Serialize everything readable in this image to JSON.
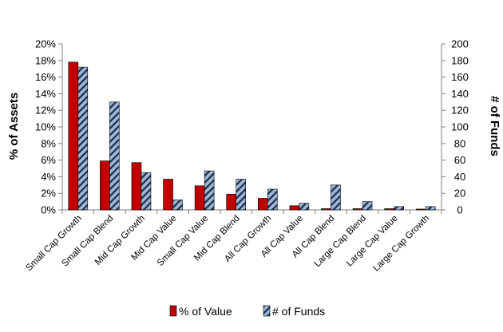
{
  "chart_data": {
    "type": "bar",
    "categories": [
      "Small Cap Growth",
      "Small Cap Blend",
      "Mid Cap Growth",
      "Mid Cap Value",
      "Small Cap Value",
      "Mid Cap Blend",
      "All Cap Growth",
      "All Cap Value",
      "All Cap Blend",
      "Large Cap Blend",
      "Large Cap Value",
      "Large Cap Growth"
    ],
    "series": [
      {
        "name": "% of Value",
        "axis": "left",
        "color": "#c00000",
        "values": [
          17.8,
          5.9,
          5.7,
          3.7,
          2.9,
          1.9,
          1.4,
          0.5,
          0.15,
          0.15,
          0.15,
          0.1
        ]
      },
      {
        "name": "# of Funds",
        "axis": "right",
        "color": "#9bb7d9",
        "pattern": "diagonal-stripes",
        "values": [
          172,
          130,
          45,
          12,
          47,
          37,
          25,
          8,
          30,
          10,
          4,
          4
        ]
      }
    ],
    "ylabel": "% of Assets",
    "ylabel_right": "# of Funds",
    "ylim": [
      0,
      20
    ],
    "ylim_right": [
      0,
      200
    ],
    "yticks": [
      "0%",
      "2%",
      "4%",
      "6%",
      "8%",
      "10%",
      "12%",
      "14%",
      "16%",
      "18%",
      "20%"
    ],
    "yticks_right": [
      "0",
      "20",
      "40",
      "60",
      "80",
      "100",
      "120",
      "140",
      "160",
      "180",
      "200"
    ],
    "grid": false,
    "legend": "bottom"
  }
}
